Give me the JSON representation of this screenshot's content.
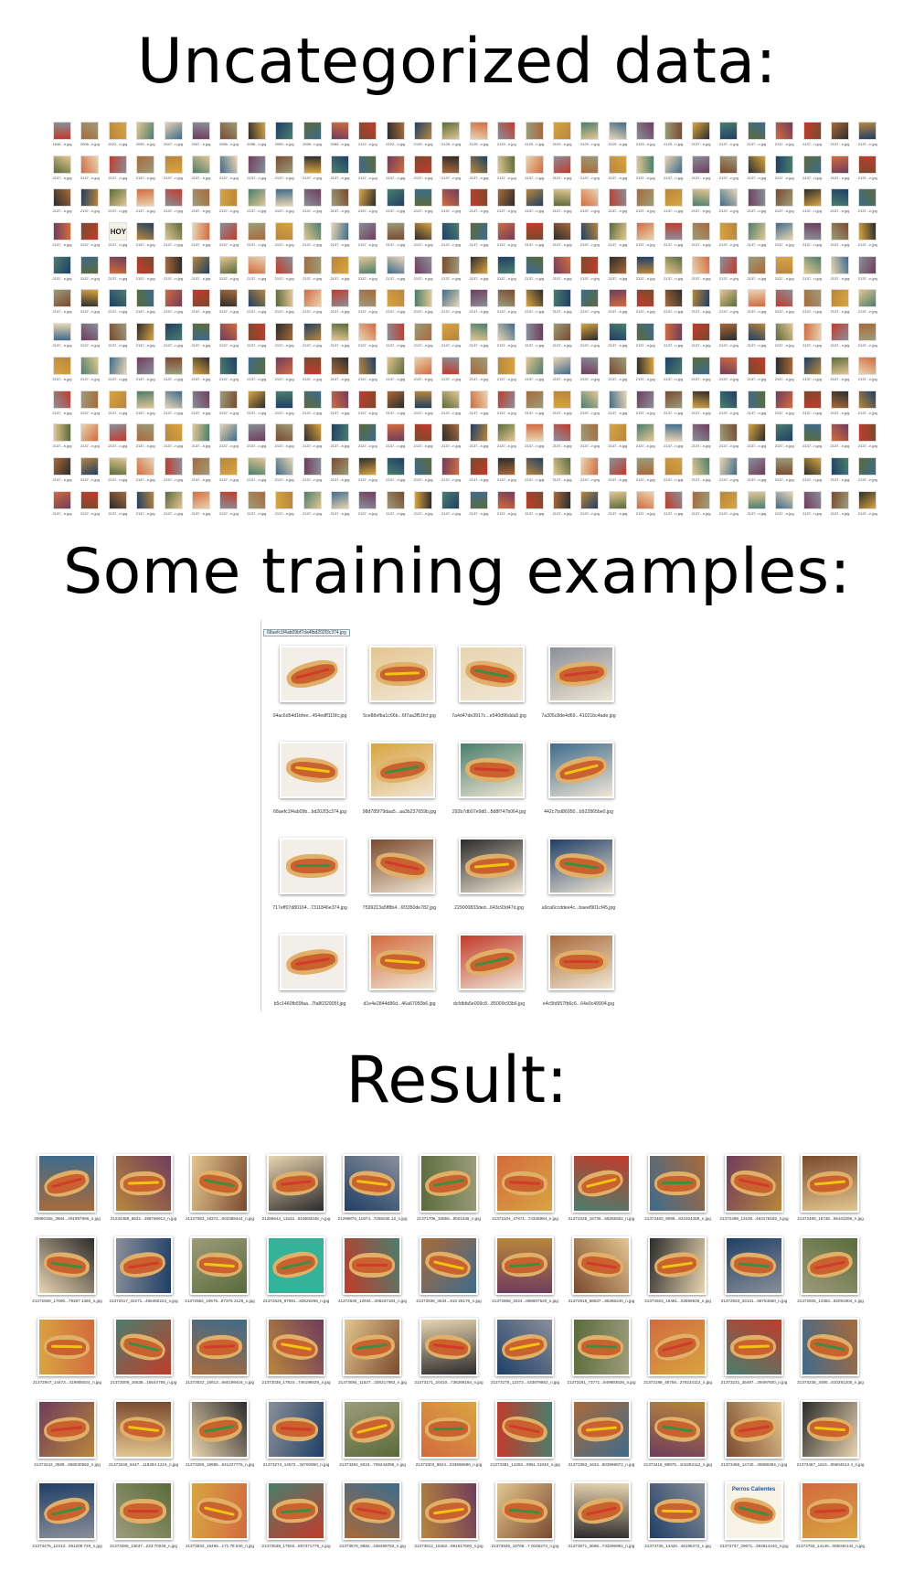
{
  "headings": {
    "uncategorized": "Uncategorized data:",
    "training": "Some training examples:",
    "result": "Result:"
  },
  "uncategorized": {
    "first_row_captions": [
      "1646...n.jpg",
      "2006...n.jpg",
      "2021...n.jpg",
      "2039...n.jpg",
      "2047...n.jpg",
      "2047...n.jpg",
      "2056...n.jpg",
      "2058...n.jpg",
      "2059...n.jpg",
      "2059...n.jpg",
      "2083...n.jpg",
      "2122...n.jpg",
      "2122...n.jpg",
      "2129...n.jpg",
      "2129...n.jpg",
      "2129...n.jpg",
      "2129...n.jpg",
      "2129...n.jpg",
      "2129...n.jpg",
      "2129...n.jpg",
      "2129...n.jpg",
      "2129...n.jpg",
      "2129...n.jpg",
      "2137...n.jpg",
      "2137...n.jpg",
      "2137...n.jpg",
      "2137...n.jpg",
      "2137...n.jpg",
      "2137...n.jpg",
      "2137...n.jpg"
    ],
    "other_caption": "2137...n.jpg",
    "hoy_label": "HOY"
  },
  "training": {
    "top_caption": "68aefc1f4ab09bf7da4fbd202f3c374.jpg",
    "captions": [
      "04ac6d54d1bfee...454edff115fc.jpg",
      "5ce88efba1c66b...6f7aa3f51fcf.jpg",
      "7a4d47de3917c...e540d96dda5.jpg",
      "7a305c8de4d69...41021bc4ade.jpg",
      "68aefc1f4ab09b...bd202f3c374.jpg",
      "98d785f79daa5...aa3b237659b.jpg",
      "292b7db07e9d0...8d8f747b064.jpg",
      "442c7bd86950...b922865be0.jpg",
      "717eff07d80164...7311846e374.jpg",
      "7599213a5ff8b4...6f3350de782.jpg",
      "229000833ded...643c93d47d.jpg",
      "a9ca6ccddee4c...baeef901cf45.jpg",
      "b5c1460fb59faa...7fa8032905f.jpg",
      "d1e4e2844d86d...46a67050b6.jpg",
      "dcfdbfa5e009c8...85009c93b6.jpg",
      "e4c5fd957fb6c6...64e0c49904.jpg"
    ]
  },
  "result": {
    "captions": [
      "20690165_3584...291997696_n.jpg",
      "21234358_6622...488766912_n.jpg",
      "21227083_19374...603389444_n.jpg",
      "21296644_11532...919893248_n.jpg",
      "21296876_11974...7255045 12_n.jpg",
      "21371706_33855...9001648_n.jpg",
      "21372104_47671...74345984_n.jpg",
      "21372228_16736...59255552_n.jpg",
      "21372463_8096...921004288_n.jpg",
      "21372498_13100...463176192_n.jpg",
      "21372499_18748...66103296_n.jpg",
      "21372508_17690...79387 1360_n.jpg",
      "21372517_32271...466460224_n.jpg",
      "21372583_19575...87375 2128_n.jpg",
      "21372626_97891...83629266_n.jpg",
      "21372636_12934...308227184_n.jpg",
      "21372836_3634...810 25176_n.jpg",
      "21372868_2024...896907520_n.jpg",
      "21372918_68537...85386240_n.jpg",
      "21372923_19481...03589536_n.jpg",
      "21372933_33131...58754560_n.jpg",
      "21372935_14383...82091904_n.jpg",
      "21372947_14473...419905024_n.jpg",
      "21373009_16538...16544768_n.jpg",
      "21373022_16913...660199416_n.jpg",
      "21373038_17924...746198528_n.jpg",
      "21373084_11527...336317952_n.jpg",
      "21373171_20410...736269184_n.jpg",
      "21373178_12373...433879552_n.jpg",
      "21373191_73771...949693536_n.jpg",
      "21373199_48756...279234112_n.jpg",
      "21373221_35497...29497600_n.jpg",
      "21373238_3490...810291200_n.jpg",
      "21373242_3589...858030592_n.jpg",
      "21373248_8447...118284 1216_n.jpg",
      "21373266_18995...841227776_n.jpg",
      "21373274_14572...34760960_n.jpg",
      "21373284_5024...706244096_n.jpg",
      "21373303_8924...033665696_n.jpg",
      "21373381_12282...0961 31040_n.jpg",
      "21373393_1634...803969872_n.jpg",
      "21373416_88875...104282112_n.jpg",
      "21373465_14740...30688384_n.jpg",
      "21373467_1615...05504614 4_n.jpg",
      "21373475_12313...081208 729_n.jpg",
      "21373489_14637...223 70048_n.jpg",
      "21373532_16495...171 78 640_n.jpg",
      "21373538_17503...807371776_n.jpg",
      "21373578_6882...436489792_n.jpg",
      "21373612_16462...891617600_n.jpg",
      "21373636_18768...7 0046272_n.jpg",
      "21373671_3658...733396992_n.jpg",
      "21373735_14420...46196272_n.jpg",
      "21373737_29671...363914240_n.jpg",
      "21373755_14149...055046144_n.jpg"
    ],
    "sign_text": "Perros Calientes"
  },
  "colors": {
    "palette": [
      "#7a4a2e",
      "#b8863b",
      "#3e6b8c",
      "#c23b2b",
      "#d9a441",
      "#5a6b3b",
      "#8a8f99",
      "#2c2c2c",
      "#e3c690",
      "#6f3d5c",
      "#a86a3a",
      "#4a7e6d",
      "#d26b3e",
      "#9c9c7a",
      "#1f3f66",
      "#e8d4b0"
    ]
  }
}
